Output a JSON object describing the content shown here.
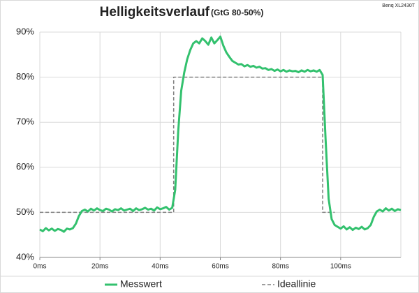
{
  "chart_data": {
    "type": "line",
    "title": "Helligkeitsverlauf",
    "subtitle": "(GtG 80-50%)",
    "annotation": "Benq XL2430T",
    "xlim": [
      0,
      120
    ],
    "xticks": [
      {
        "value": 0,
        "label": "0ms"
      },
      {
        "value": 20,
        "label": "20ms"
      },
      {
        "value": 40,
        "label": "40ms"
      },
      {
        "value": 60,
        "label": "60ms"
      },
      {
        "value": 80,
        "label": "80ms"
      },
      {
        "value": 100,
        "label": "100ms"
      }
    ],
    "ylim": [
      40,
      90
    ],
    "yticks": [
      {
        "value": 40,
        "label": "40%"
      },
      {
        "value": 50,
        "label": "50%"
      },
      {
        "value": 60,
        "label": "60%"
      },
      {
        "value": 70,
        "label": "70%"
      },
      {
        "value": 80,
        "label": "80%"
      },
      {
        "value": 90,
        "label": "90%"
      }
    ],
    "grid": true,
    "legend": "bottom",
    "series": [
      {
        "name": "Messwert",
        "color": "#33c16e",
        "style": "solid",
        "x": [
          0,
          1,
          2,
          3,
          4,
          5,
          6,
          7,
          8,
          9,
          10,
          11,
          12,
          13,
          14,
          15,
          16,
          17,
          18,
          19,
          20,
          21,
          22,
          23,
          24,
          25,
          26,
          27,
          28,
          29,
          30,
          31,
          32,
          33,
          34,
          35,
          36,
          37,
          38,
          39,
          40,
          41,
          42,
          43,
          44,
          45,
          46,
          47,
          48,
          49,
          50,
          51,
          52,
          53,
          54,
          55,
          56,
          57,
          58,
          59,
          60,
          61,
          62,
          63,
          64,
          65,
          66,
          67,
          68,
          69,
          70,
          71,
          72,
          73,
          74,
          75,
          76,
          77,
          78,
          79,
          80,
          81,
          82,
          83,
          84,
          85,
          86,
          87,
          88,
          89,
          90,
          91,
          92,
          93,
          94,
          95,
          96,
          97,
          98,
          99,
          100,
          101,
          102,
          103,
          104,
          105,
          106,
          107,
          108,
          109,
          110,
          111,
          112,
          113,
          114,
          115,
          116,
          117,
          118,
          119,
          120
        ],
        "values": [
          46.2,
          45.8,
          46.5,
          46.0,
          46.4,
          45.9,
          46.3,
          46.1,
          45.7,
          46.4,
          46.2,
          46.5,
          47.5,
          49.2,
          50.3,
          50.6,
          50.2,
          50.8,
          50.4,
          50.9,
          50.5,
          50.3,
          50.8,
          50.6,
          50.2,
          50.7,
          50.5,
          50.9,
          50.4,
          50.6,
          50.8,
          50.3,
          50.9,
          50.5,
          50.7,
          51.0,
          50.6,
          50.8,
          50.4,
          51.1,
          50.7,
          50.9,
          51.2,
          50.6,
          51.0,
          55,
          68,
          77,
          81,
          84,
          86,
          87.5,
          88,
          87.5,
          88.6,
          88,
          87.2,
          88.8,
          87.5,
          88.2,
          89,
          87,
          85.5,
          84.5,
          83.6,
          83.2,
          82.8,
          82.9,
          82.4,
          82.7,
          82.3,
          82.5,
          82.1,
          82.3,
          81.9,
          82.0,
          81.6,
          81.8,
          81.4,
          81.7,
          81.3,
          81.6,
          81.2,
          81.5,
          81.3,
          81.4,
          81.1,
          81.5,
          81.2,
          81.6,
          81.3,
          81.5,
          81.2,
          81.6,
          80.5,
          66,
          53,
          48.5,
          47.2,
          46.8,
          46.4,
          46.9,
          46.2,
          46.7,
          46.1,
          46.6,
          46.3,
          46.8,
          46.2,
          46.5,
          47.2,
          49,
          50.2,
          50.6,
          50.2,
          50.9,
          50.4,
          50.8,
          50.3,
          50.7,
          50.5
        ]
      },
      {
        "name": "Ideallinie",
        "color": "#7f7f7f",
        "style": "dashed",
        "x": [
          0,
          44.5,
          44.5,
          94,
          94,
          98
        ],
        "values": [
          50,
          50,
          80,
          80,
          50,
          50
        ]
      }
    ]
  }
}
